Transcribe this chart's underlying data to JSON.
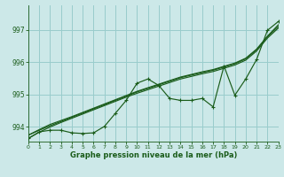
{
  "background_color": "#cce8e8",
  "grid_color": "#99cccc",
  "line_color": "#1a5c1a",
  "ylabel_values": [
    994,
    995,
    996,
    997
  ],
  "xlabel_values": [
    0,
    1,
    2,
    3,
    4,
    5,
    6,
    7,
    8,
    9,
    10,
    11,
    12,
    13,
    14,
    15,
    16,
    17,
    18,
    19,
    20,
    21,
    22,
    23
  ],
  "xlim": [
    0,
    23
  ],
  "ylim": [
    993.55,
    997.75
  ],
  "xlabel": "Graphe pression niveau de la mer (hPa)",
  "data_line": [
    993.65,
    993.85,
    993.9,
    993.9,
    993.82,
    993.8,
    993.82,
    994.02,
    994.42,
    994.82,
    995.35,
    995.48,
    995.28,
    994.88,
    994.82,
    994.82,
    994.88,
    994.62,
    995.88,
    994.98,
    995.48,
    996.08,
    996.98,
    997.25
  ],
  "smooth1": [
    993.75,
    993.9,
    994.04,
    994.17,
    994.3,
    994.43,
    994.56,
    994.69,
    994.82,
    994.95,
    995.08,
    995.19,
    995.3,
    995.41,
    995.52,
    995.6,
    995.68,
    995.75,
    995.85,
    995.95,
    996.1,
    996.38,
    996.78,
    997.1
  ],
  "smooth2": [
    993.75,
    993.92,
    994.08,
    994.2,
    994.32,
    994.45,
    994.58,
    994.71,
    994.84,
    994.97,
    995.1,
    995.21,
    995.32,
    995.43,
    995.54,
    995.62,
    995.7,
    995.77,
    995.87,
    995.97,
    996.12,
    996.4,
    996.8,
    997.15
  ],
  "smooth3": [
    993.65,
    993.84,
    994.0,
    994.14,
    994.27,
    994.4,
    994.53,
    994.66,
    994.79,
    994.92,
    995.04,
    995.15,
    995.26,
    995.37,
    995.48,
    995.56,
    995.64,
    995.71,
    995.81,
    995.91,
    996.06,
    996.34,
    996.74,
    997.05
  ]
}
